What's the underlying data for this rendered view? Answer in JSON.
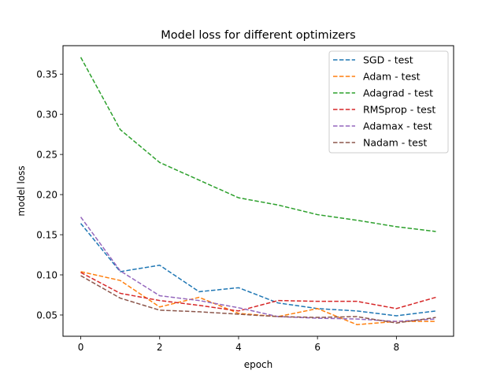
{
  "chart_data": {
    "type": "line",
    "title": "Model loss for different optimizers",
    "xlabel": "epoch",
    "ylabel": "model loss",
    "xlim": [
      -0.45,
      9.45
    ],
    "ylim": [
      0.0235,
      0.3855
    ],
    "xticks": [
      0,
      2,
      4,
      6,
      8
    ],
    "yticks": [
      0.05,
      0.1,
      0.15,
      0.2,
      0.25,
      0.3,
      0.35
    ],
    "ytick_labels": [
      "0.05",
      "0.10",
      "0.15",
      "0.20",
      "0.25",
      "0.30",
      "0.35"
    ],
    "grid": false,
    "legend_position": "top-right",
    "line_style": "dashed",
    "x": [
      0,
      1,
      2,
      3,
      4,
      5,
      6,
      7,
      8,
      9
    ],
    "series": [
      {
        "name": "SGD - test",
        "color": "#1f77b4",
        "values": [
          0.164,
          0.104,
          0.112,
          0.079,
          0.084,
          0.065,
          0.058,
          0.055,
          0.049,
          0.055
        ]
      },
      {
        "name": "Adam - test",
        "color": "#ff7f0e",
        "values": [
          0.104,
          0.093,
          0.06,
          0.072,
          0.052,
          0.048,
          0.058,
          0.038,
          0.042,
          0.042
        ]
      },
      {
        "name": "Adagrad - test",
        "color": "#2ca02c",
        "values": [
          0.371,
          0.281,
          0.24,
          0.218,
          0.196,
          0.187,
          0.175,
          0.168,
          0.16,
          0.154
        ]
      },
      {
        "name": "RMSprop - test",
        "color": "#d62728",
        "values": [
          0.103,
          0.077,
          0.068,
          0.062,
          0.055,
          0.068,
          0.067,
          0.067,
          0.058,
          0.072
        ]
      },
      {
        "name": "Adamax - test",
        "color": "#9467bd",
        "values": [
          0.172,
          0.105,
          0.074,
          0.068,
          0.059,
          0.048,
          0.046,
          0.045,
          0.042,
          0.045
        ]
      },
      {
        "name": "Nadam - test",
        "color": "#8c564b",
        "values": [
          0.099,
          0.071,
          0.056,
          0.054,
          0.051,
          0.048,
          0.047,
          0.048,
          0.04,
          0.047
        ]
      }
    ]
  }
}
